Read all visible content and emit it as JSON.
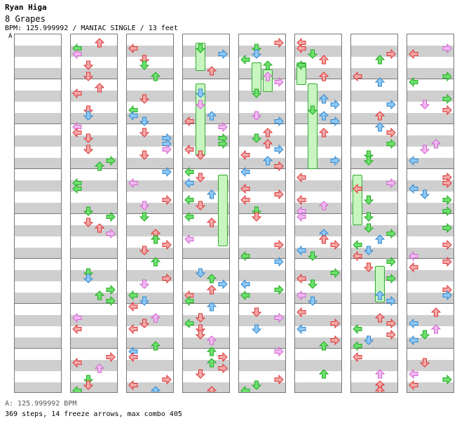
{
  "header": {
    "artist": "Ryan Higa",
    "title": "8 Grapes",
    "info": "BPM: 125.999992 / MANIAC SINGLE / 13 feet",
    "bpm_marker": "A"
  },
  "footer": {
    "bpm": "A: 125.999992 BPM",
    "stats": "369 steps, 14 freeze arrows, max combo 405"
  },
  "colors": {
    "red_arrow": "#f4a8a8",
    "green_arrow": "#6ee06e",
    "blue_arrow": "#8cc8f8",
    "pink_arrow": "#f4b8f4",
    "freeze": "#c8f5c0"
  }
}
